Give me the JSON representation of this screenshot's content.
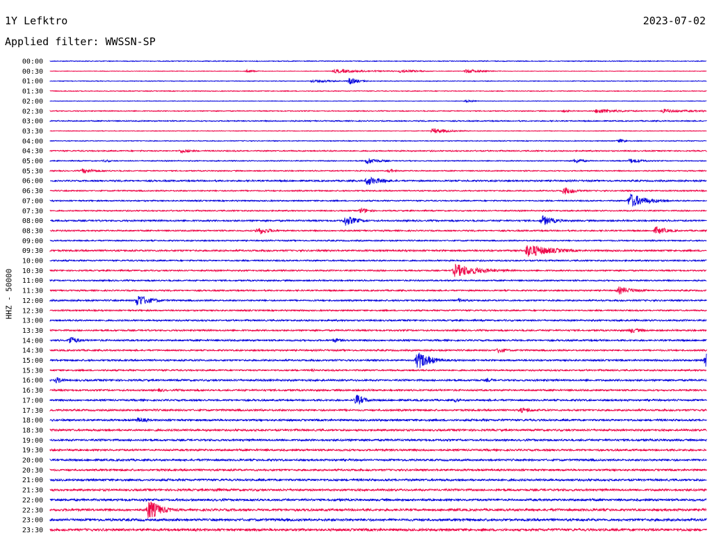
{
  "header": {
    "station": "1Y Lefktro",
    "date": "2023-07-02",
    "filter": "Applied filter: WWSSN-SP"
  },
  "chart_data": {
    "type": "line",
    "title": "1Y Lefktro",
    "subtitle": "Applied filter: WWSSN-SP",
    "ylabel": "HHZ - 50000",
    "xlabel": "",
    "trace_colors": [
      "#0000dd",
      "#ee0044"
    ],
    "rows": [
      "00:00",
      "00:30",
      "01:00",
      "01:30",
      "02:00",
      "02:30",
      "03:00",
      "03:30",
      "04:00",
      "04:30",
      "05:00",
      "05:30",
      "06:00",
      "06:30",
      "07:00",
      "07:30",
      "08:00",
      "08:30",
      "09:00",
      "09:30",
      "10:00",
      "10:30",
      "11:00",
      "11:30",
      "12:00",
      "12:30",
      "13:00",
      "13:30",
      "14:00",
      "14:30",
      "15:00",
      "15:30",
      "16:00",
      "16:30",
      "17:00",
      "17:30",
      "18:00",
      "18:30",
      "19:00",
      "19:30",
      "20:00",
      "20:30",
      "21:00",
      "21:30",
      "22:00",
      "22:30",
      "23:00",
      "23:30"
    ],
    "noise_level": [
      0.5,
      0.3,
      0.4,
      0.5,
      0.3,
      0.6,
      0.7,
      0.4,
      0.5,
      0.8,
      0.6,
      0.7,
      1.0,
      0.8,
      0.8,
      0.8,
      1.0,
      0.9,
      0.8,
      1.1,
      0.9,
      0.9,
      0.9,
      0.9,
      1.0,
      0.9,
      1.0,
      1.0,
      1.1,
      1.0,
      1.1,
      1.0,
      1.2,
      1.1,
      1.2,
      1.2,
      1.3,
      1.3,
      1.3,
      1.3,
      1.3,
      1.3,
      1.4,
      1.4,
      1.5,
      1.6,
      1.7,
      1.7
    ],
    "events": [
      {
        "row": 1,
        "minute": 9,
        "amp": 2,
        "dur": 1
      },
      {
        "row": 1,
        "minute": 13,
        "amp": 3,
        "dur": 4
      },
      {
        "row": 1,
        "minute": 16,
        "amp": 3,
        "dur": 2
      },
      {
        "row": 1,
        "minute": 19,
        "amp": 3,
        "dur": 2
      },
      {
        "row": 2,
        "minute": 12,
        "amp": 3,
        "dur": 2
      },
      {
        "row": 2,
        "minute": 13.7,
        "amp": 6,
        "dur": 1
      },
      {
        "row": 4,
        "minute": 19,
        "amp": 2,
        "dur": 1
      },
      {
        "row": 5,
        "minute": 23.5,
        "amp": 2,
        "dur": 1
      },
      {
        "row": 5,
        "minute": 25,
        "amp": 4,
        "dur": 3
      },
      {
        "row": 5,
        "minute": 28,
        "amp": 3,
        "dur": 4
      },
      {
        "row": 7,
        "minute": 17.5,
        "amp": 4,
        "dur": 2
      },
      {
        "row": 8,
        "minute": 26,
        "amp": 3,
        "dur": 1
      },
      {
        "row": 9,
        "minute": 6,
        "amp": 4,
        "dur": 1
      },
      {
        "row": 10,
        "minute": 2.5,
        "amp": 2,
        "dur": 1
      },
      {
        "row": 10,
        "minute": 14.5,
        "amp": 5,
        "dur": 1.5
      },
      {
        "row": 10,
        "minute": 24,
        "amp": 4,
        "dur": 1
      },
      {
        "row": 10,
        "minute": 26.5,
        "amp": 4,
        "dur": 1.5
      },
      {
        "row": 11,
        "minute": 1.5,
        "amp": 4,
        "dur": 2
      },
      {
        "row": 11,
        "minute": 15.5,
        "amp": 3,
        "dur": 1
      },
      {
        "row": 12,
        "minute": 14.5,
        "amp": 7,
        "dur": 2
      },
      {
        "row": 13,
        "minute": 23.5,
        "amp": 6,
        "dur": 1.5
      },
      {
        "row": 14,
        "minute": 26.5,
        "amp": 11,
        "dur": 2
      },
      {
        "row": 15,
        "minute": 14.2,
        "amp": 5,
        "dur": 1
      },
      {
        "row": 16,
        "minute": 13.5,
        "amp": 8,
        "dur": 1.5
      },
      {
        "row": 16,
        "minute": 22.5,
        "amp": 8,
        "dur": 1.5
      },
      {
        "row": 17,
        "minute": 9.5,
        "amp": 6,
        "dur": 1.5
      },
      {
        "row": 17,
        "minute": 27.7,
        "amp": 6,
        "dur": 1.5
      },
      {
        "row": 19,
        "minute": 21.8,
        "amp": 10,
        "dur": 3
      },
      {
        "row": 21,
        "minute": 18.5,
        "amp": 10,
        "dur": 3
      },
      {
        "row": 23,
        "minute": 26,
        "amp": 6,
        "dur": 2
      },
      {
        "row": 24,
        "minute": 4,
        "amp": 10,
        "dur": 1.5
      },
      {
        "row": 24,
        "minute": 18.7,
        "amp": 4,
        "dur": 1
      },
      {
        "row": 27,
        "minute": 26.5,
        "amp": 4,
        "dur": 2
      },
      {
        "row": 28,
        "minute": 0.9,
        "amp": 7,
        "dur": 1
      },
      {
        "row": 28,
        "minute": 13,
        "amp": 4,
        "dur": 1
      },
      {
        "row": 29,
        "minute": 20.5,
        "amp": 5,
        "dur": 1
      },
      {
        "row": 30,
        "minute": 16.8,
        "amp": 14,
        "dur": 1.5
      },
      {
        "row": 30,
        "minute": 30,
        "amp": 12,
        "dur": 1.5
      },
      {
        "row": 31,
        "minute": 12,
        "amp": 2,
        "dur": 1
      },
      {
        "row": 32,
        "minute": 0.3,
        "amp": 5,
        "dur": 1
      },
      {
        "row": 32,
        "minute": 20,
        "amp": 3,
        "dur": 1
      },
      {
        "row": 33,
        "minute": 5,
        "amp": 3,
        "dur": 1
      },
      {
        "row": 34,
        "minute": 14,
        "amp": 9,
        "dur": 1
      },
      {
        "row": 34,
        "minute": 18.5,
        "amp": 3,
        "dur": 1
      },
      {
        "row": 35,
        "minute": 21.5,
        "amp": 4,
        "dur": 2
      },
      {
        "row": 36,
        "minute": 4,
        "amp": 4,
        "dur": 1.5
      },
      {
        "row": 43,
        "minute": 7.5,
        "amp": 3,
        "dur": 1.5
      },
      {
        "row": 45,
        "minute": 4.5,
        "amp": 16,
        "dur": 1.5
      }
    ]
  }
}
